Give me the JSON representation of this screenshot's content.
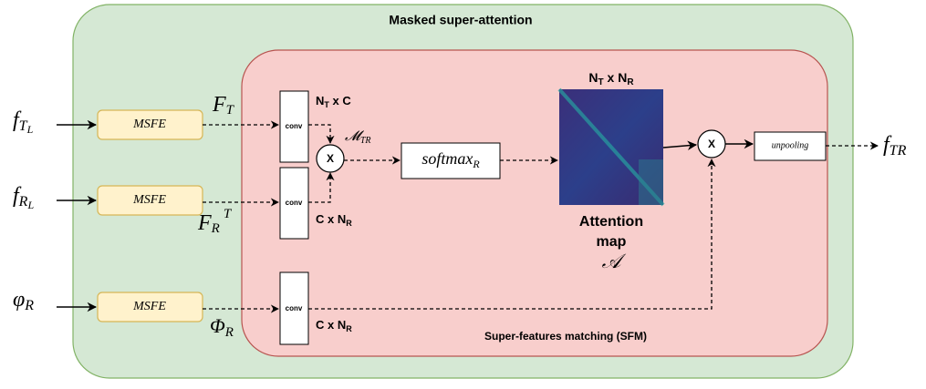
{
  "title": "Masked super-attention",
  "sfm_label": "Super-features matching (SFM)",
  "inputs": [
    {
      "base": "f",
      "sub": "T",
      "subsub": "L"
    },
    {
      "base": "f",
      "sub": "R",
      "subsub": "L"
    },
    {
      "base": "φ",
      "sub": "R"
    }
  ],
  "modules": [
    "MSFE",
    "MSFE",
    "MSFE"
  ],
  "features": [
    {
      "base": "F",
      "sub": "T"
    },
    {
      "base": "F",
      "sub": "R",
      "sup": "T"
    },
    {
      "base": "Φ",
      "sub": "R"
    }
  ],
  "convs": [
    "conv",
    "conv",
    "conv"
  ],
  "dims": [
    {
      "main": "N",
      "sub": "T",
      "rest": " x C"
    },
    {
      "main": "C x N",
      "sub": "R"
    },
    {
      "main": "C x N",
      "sub": "R"
    }
  ],
  "multiply": [
    "X",
    "X"
  ],
  "product": {
    "base": "𝓜",
    "sub": "TR"
  },
  "softmax": {
    "base": "softmax",
    "sub": "R"
  },
  "attention": {
    "dims": {
      "a": "N",
      "a_sub": "T",
      "mid": " x ",
      "b": "N",
      "b_sub": "R"
    },
    "label": [
      "Attention",
      "map"
    ],
    "symbol": "𝒜"
  },
  "unpooling": "unpooling",
  "output": {
    "base": "f",
    "sub": "TR"
  }
}
